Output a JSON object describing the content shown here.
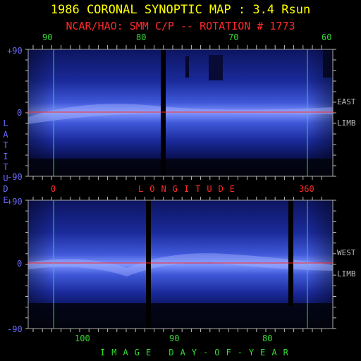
{
  "title": "1986 CORONAL SYNOPTIC MAP : 3.4 Rsun",
  "subtitle": "NCAR/HAO: SMM C/P -- ROTATION # 1773",
  "top_panel": {
    "longitude_ticks": [
      "90",
      "80",
      "70",
      "60"
    ],
    "lat_top": "+90",
    "lat_mid": "0",
    "lat_bottom": "-90",
    "side_label_1": "EAST",
    "side_label_2": "LIMB"
  },
  "longitude_axis": {
    "left": "0",
    "title": "LONGITUDE",
    "right": "360"
  },
  "latitude_axis_title": "LATITUDE",
  "bottom_panel": {
    "lat_top": "+90",
    "lat_mid": "0",
    "lat_bottom": "-90",
    "side_label_1": "WEST",
    "side_label_2": "LIMB",
    "day_ticks": [
      "100",
      "90",
      "80"
    ],
    "axis_title": "IMAGE DAY-OF-YEAR"
  },
  "colors": {
    "background": "#000000",
    "title": "#ffff00",
    "subtitle": "#ff2a2a",
    "marker_lines": "#33dd33",
    "equator_line": "#ff2a2a",
    "latitude_labels": "#6a6aff",
    "map_base": "#101c7a",
    "map_bright": "#8a9cff"
  }
}
